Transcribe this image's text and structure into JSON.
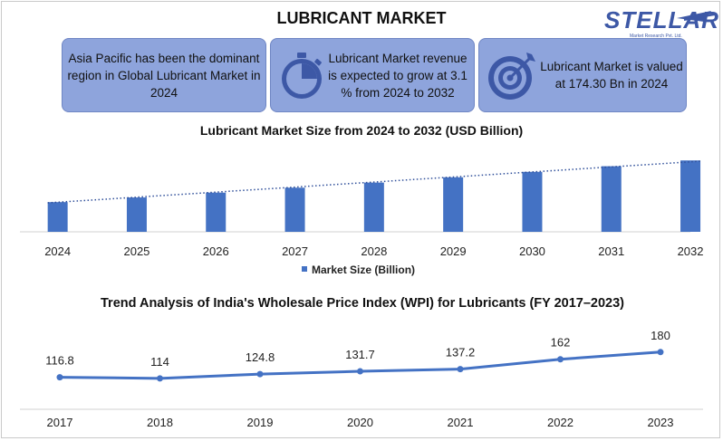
{
  "title": "LUBRICANT MARKET",
  "logo": {
    "name": "STELLAR",
    "sub": "Market Research Pvt. Ltd."
  },
  "info_boxes": [
    {
      "text": "Asia Pacific has been the dominant region in Global Lubricant Market in 2024"
    },
    {
      "text": "Lubricant Market revenue is expected to grow at 3.1 % from 2024 to 2032",
      "icon": "stopwatch-icon"
    },
    {
      "text": "Lubricant Market is valued at 174.30 Bn in 2024",
      "icon": "target-icon"
    }
  ],
  "colors": {
    "bar": "#4472c4",
    "box": "#8ea4dc",
    "trend": "#4472c4",
    "line": "#4472c4"
  },
  "chart_data": [
    {
      "type": "bar",
      "title": "Lubricant Market Size from 2024 to 2032 (USD Billion)",
      "categories": [
        "2024",
        "2025",
        "2026",
        "2027",
        "2028",
        "2029",
        "2030",
        "2031",
        "2032"
      ],
      "series": [
        {
          "name": "Market Size (Billion)",
          "values": [
            174.3,
            179.7,
            185.3,
            191.0,
            196.9,
            203.0,
            209.3,
            215.8,
            222.5
          ]
        }
      ],
      "trendline": "linear dotted",
      "legend": "bottom",
      "ylim": [
        140,
        230
      ],
      "grid": false
    },
    {
      "type": "line",
      "title": "Trend Analysis of India's Wholesale Price Index (WPI) for Lubricants (FY 2017–2023)",
      "categories": [
        "2017",
        "2018",
        "2019",
        "2020",
        "2021",
        "2022",
        "2023"
      ],
      "series": [
        {
          "values": [
            116.8,
            114,
            124.8,
            131.7,
            137.2,
            162,
            180
          ]
        }
      ],
      "data_labels": [
        "116.8",
        "114",
        "124.8",
        "131.7",
        "137.2",
        "162",
        "180"
      ],
      "grid": false
    }
  ]
}
